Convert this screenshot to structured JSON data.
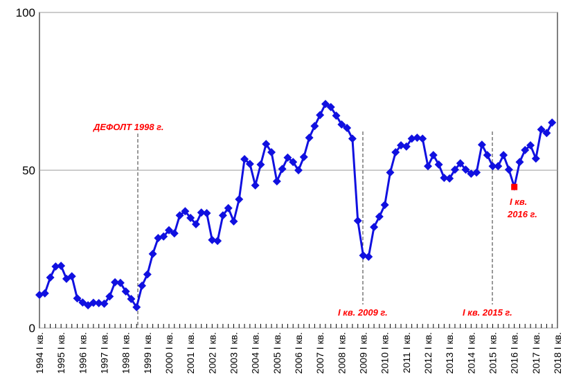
{
  "chart_data": {
    "type": "line",
    "categories": [
      "1994 I кв.",
      null,
      null,
      null,
      "1995 I кв.",
      null,
      null,
      null,
      "1996 I кв.",
      null,
      null,
      null,
      "1997 I кв.",
      null,
      null,
      null,
      "1998 I кв.",
      null,
      null,
      null,
      "1999 I кв.",
      null,
      null,
      null,
      "2000 I кв.",
      null,
      null,
      null,
      "2001 I кв.",
      null,
      null,
      null,
      "2002 I кв.",
      null,
      null,
      null,
      "2003 I кв.",
      null,
      null,
      null,
      "2004 I кв.",
      null,
      null,
      null,
      "2005 I кв.",
      null,
      null,
      null,
      "2006 I кв.",
      null,
      null,
      null,
      "2007 I кв.",
      null,
      null,
      null,
      "2008 I кв.",
      null,
      null,
      null,
      "2009 I кв.",
      null,
      null,
      null,
      "2010 I кв.",
      null,
      null,
      null,
      "2011 I кв.",
      null,
      null,
      null,
      "2012 I кв.",
      null,
      null,
      null,
      "2013 I кв.",
      null,
      null,
      null,
      "2014 I кв.",
      null,
      null,
      null,
      "2015 I кв.",
      null,
      null,
      null,
      "2016 I кв.",
      null,
      null,
      null,
      "2017 I кв.",
      null,
      null,
      null,
      "2018 I кв."
    ],
    "values": [
      10.5,
      11,
      16,
      19.5,
      19.7,
      15.6,
      16.4,
      9.4,
      8.1,
      7.2,
      8,
      7.9,
      7.7,
      10,
      14.5,
      14.3,
      11.6,
      9.2,
      6.6,
      13.4,
      17,
      23.5,
      28.5,
      29,
      31,
      30,
      35.7,
      37,
      34.9,
      32.9,
      36.6,
      36.4,
      27.9,
      27.6,
      35.7,
      38,
      33.8,
      40.8,
      53.5,
      52,
      45.2,
      51.8,
      58.3,
      55.7,
      46.5,
      50.4,
      54,
      52.6,
      50,
      54.2,
      60.3,
      64,
      67.5,
      71,
      70,
      67.3,
      64.5,
      63.4,
      60,
      34,
      23,
      22.6,
      32,
      35.3,
      39,
      49.3,
      55.7,
      57.9,
      57.5,
      60,
      60.3,
      60,
      51.3,
      54.8,
      51.8,
      47.6,
      47.4,
      50.2,
      52.2,
      50.2,
      48.9,
      49.3,
      58.1,
      54.8,
      51.3,
      51.3,
      54.8,
      50.2,
      44.7,
      52.6,
      56.4,
      57.9,
      53.7,
      62.9,
      61.8,
      65.1,
      null
    ],
    "color": "#1010e0",
    "highlight_index": 88,
    "highlight_color": "#ff0000",
    "ylim": [
      0,
      100
    ],
    "yticks": [
      0,
      50,
      100
    ],
    "grid": true,
    "annotations": {
      "default": "ДЕФОЛТ 1998 г.",
      "crisis2009": "I кв. 2009 г.",
      "crisis2015": "I кв. 2015 г.",
      "low2016": [
        "I кв.",
        "2016 г."
      ]
    }
  }
}
